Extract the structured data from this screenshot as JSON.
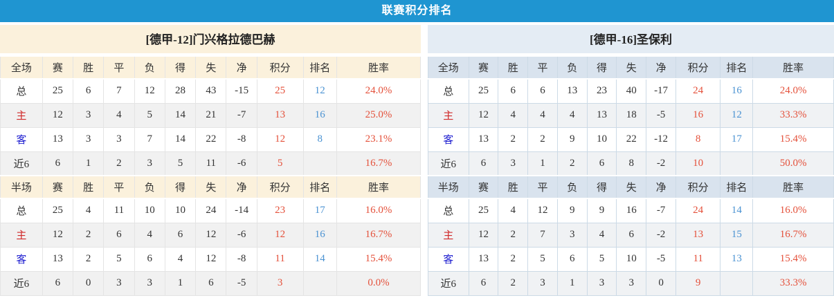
{
  "title": "联赛积分排名",
  "colors": {
    "title_bar_bg": "#1f95d1",
    "title_text": "#ffffff",
    "left_panel_accent": "#fbf1dc",
    "right_panel_accent_team": "#e4ecf4",
    "right_panel_accent_header": "#d9e3ee",
    "points_and_rate_text": "#e4503a",
    "rank_text": "#4a92d2",
    "home_label_text": "#d02929",
    "away_label_text": "#1f1fd0",
    "stripe_row_bg": "#f1f1f1"
  },
  "tables": [
    {
      "team_title": "[德甲-12]门兴格拉德巴赫",
      "sections": [
        {
          "header": [
            "全场",
            "赛",
            "胜",
            "平",
            "负",
            "得",
            "失",
            "净",
            "积分",
            "排名",
            "胜率"
          ],
          "rows": [
            {
              "label": "总",
              "label_type": "total",
              "values": [
                "25",
                "6",
                "7",
                "12",
                "28",
                "43",
                "-15"
              ],
              "points": "25",
              "rank": "12",
              "win_rate": "24.0%"
            },
            {
              "label": "主",
              "label_type": "home",
              "values": [
                "12",
                "3",
                "4",
                "5",
                "14",
                "21",
                "-7"
              ],
              "points": "13",
              "rank": "16",
              "win_rate": "25.0%"
            },
            {
              "label": "客",
              "label_type": "away",
              "values": [
                "13",
                "3",
                "3",
                "7",
                "14",
                "22",
                "-8"
              ],
              "points": "12",
              "rank": "8",
              "win_rate": "23.1%"
            },
            {
              "label": "近6",
              "label_type": "recent",
              "values": [
                "6",
                "1",
                "2",
                "3",
                "5",
                "11",
                "-6"
              ],
              "points": "5",
              "rank": "",
              "win_rate": "16.7%"
            }
          ]
        },
        {
          "header": [
            "半场",
            "赛",
            "胜",
            "平",
            "负",
            "得",
            "失",
            "净",
            "积分",
            "排名",
            "胜率"
          ],
          "rows": [
            {
              "label": "总",
              "label_type": "total",
              "values": [
                "25",
                "4",
                "11",
                "10",
                "10",
                "24",
                "-14"
              ],
              "points": "23",
              "rank": "17",
              "win_rate": "16.0%"
            },
            {
              "label": "主",
              "label_type": "home",
              "values": [
                "12",
                "2",
                "6",
                "4",
                "6",
                "12",
                "-6"
              ],
              "points": "12",
              "rank": "16",
              "win_rate": "16.7%"
            },
            {
              "label": "客",
              "label_type": "away",
              "values": [
                "13",
                "2",
                "5",
                "6",
                "4",
                "12",
                "-8"
              ],
              "points": "11",
              "rank": "14",
              "win_rate": "15.4%"
            },
            {
              "label": "近6",
              "label_type": "recent",
              "values": [
                "6",
                "0",
                "3",
                "3",
                "1",
                "6",
                "-5"
              ],
              "points": "3",
              "rank": "",
              "win_rate": "0.0%"
            }
          ]
        }
      ]
    },
    {
      "team_title": "[德甲-16]圣保利",
      "sections": [
        {
          "header": [
            "全场",
            "赛",
            "胜",
            "平",
            "负",
            "得",
            "失",
            "净",
            "积分",
            "排名",
            "胜率"
          ],
          "rows": [
            {
              "label": "总",
              "label_type": "total",
              "values": [
                "25",
                "6",
                "6",
                "13",
                "23",
                "40",
                "-17"
              ],
              "points": "24",
              "rank": "16",
              "win_rate": "24.0%"
            },
            {
              "label": "主",
              "label_type": "home",
              "values": [
                "12",
                "4",
                "4",
                "4",
                "13",
                "18",
                "-5"
              ],
              "points": "16",
              "rank": "12",
              "win_rate": "33.3%"
            },
            {
              "label": "客",
              "label_type": "away",
              "values": [
                "13",
                "2",
                "2",
                "9",
                "10",
                "22",
                "-12"
              ],
              "points": "8",
              "rank": "17",
              "win_rate": "15.4%"
            },
            {
              "label": "近6",
              "label_type": "recent",
              "values": [
                "6",
                "3",
                "1",
                "2",
                "6",
                "8",
                "-2"
              ],
              "points": "10",
              "rank": "",
              "win_rate": "50.0%"
            }
          ]
        },
        {
          "header": [
            "半场",
            "赛",
            "胜",
            "平",
            "负",
            "得",
            "失",
            "净",
            "积分",
            "排名",
            "胜率"
          ],
          "rows": [
            {
              "label": "总",
              "label_type": "total",
              "values": [
                "25",
                "4",
                "12",
                "9",
                "9",
                "16",
                "-7"
              ],
              "points": "24",
              "rank": "14",
              "win_rate": "16.0%"
            },
            {
              "label": "主",
              "label_type": "home",
              "values": [
                "12",
                "2",
                "7",
                "3",
                "4",
                "6",
                "-2"
              ],
              "points": "13",
              "rank": "15",
              "win_rate": "16.7%"
            },
            {
              "label": "客",
              "label_type": "away",
              "values": [
                "13",
                "2",
                "5",
                "6",
                "5",
                "10",
                "-5"
              ],
              "points": "11",
              "rank": "13",
              "win_rate": "15.4%"
            },
            {
              "label": "近6",
              "label_type": "recent",
              "values": [
                "6",
                "2",
                "3",
                "1",
                "3",
                "3",
                "0"
              ],
              "points": "9",
              "rank": "",
              "win_rate": "33.3%"
            }
          ]
        }
      ]
    }
  ]
}
